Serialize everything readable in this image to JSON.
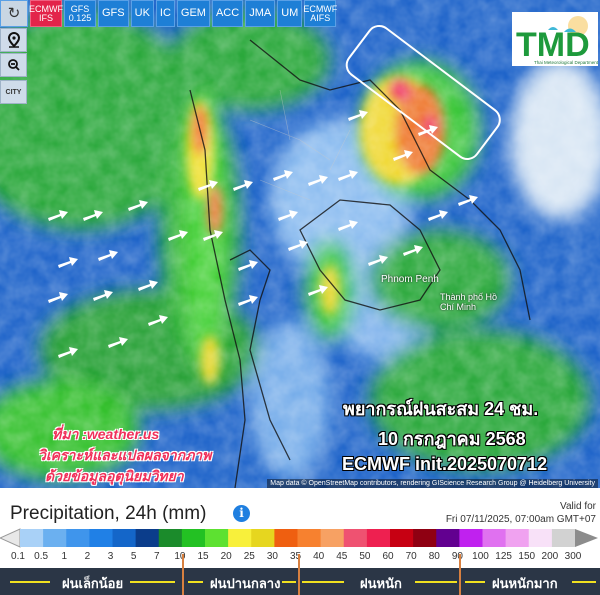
{
  "toolbar": {
    "refresh_icon": "refresh-icon",
    "models": [
      {
        "label": "ECMWF IFS",
        "active": true
      },
      {
        "label": "GFS 0.125",
        "active": false
      },
      {
        "label": "GFS",
        "active": false
      },
      {
        "label": "UK",
        "active": false
      },
      {
        "label": "IC",
        "active": false
      },
      {
        "label": "GEM",
        "active": false
      },
      {
        "label": "ACC",
        "active": false
      },
      {
        "label": "JMA",
        "active": false
      },
      {
        "label": "UM",
        "active": false
      },
      {
        "label": "ECMWF AIFS",
        "active": false
      }
    ]
  },
  "side_tools": {
    "location_icon": "map-pin-icon",
    "zoom_icon": "zoom-out-icon",
    "city_label": "CITY"
  },
  "logo": {
    "text": "TMD",
    "subtitle": "Thai Meteorological Department"
  },
  "map": {
    "cities": [
      "Phnom Penh",
      "Thành phố Hồ Chí Minh"
    ],
    "attribution": "Map data © OpenStreetMap contributors, rendering GIScience Research Group @ Heidelberg University"
  },
  "overlay": {
    "title": "พยากรณ์ฝนสะสม 24 ชม.",
    "date": "10 กรกฎาคม 2568",
    "model_init": "ECMWF init.2025070712",
    "source": "ที่มา :weather.us",
    "analysis": "วิเคราะห์และแปลผลจากภาพ",
    "credit": "ด้วยข้อมูลอุตุนิยมวิทยา"
  },
  "legend": {
    "title": "Precipitation, 24h (mm)",
    "info_icon": "info-icon",
    "valid_label": "Valid for",
    "valid_time": "Fri 07/11/2025, 07:00am GMT+07",
    "ticks": [
      "0.1",
      "0.5",
      "1",
      "2",
      "3",
      "5",
      "7",
      "10",
      "15",
      "20",
      "25",
      "30",
      "35",
      "40",
      "45",
      "50",
      "60",
      "70",
      "80",
      "90",
      "100",
      "125",
      "150",
      "200",
      "300"
    ],
    "colors": [
      "#a9d1f7",
      "#6bb0f0",
      "#3f95ec",
      "#2080e6",
      "#1466c9",
      "#0b3d8b",
      "#1b8b2b",
      "#23c123",
      "#5de131",
      "#f8f03b",
      "#e6d61f",
      "#ef5f10",
      "#f7812f",
      "#f7a163",
      "#ef5271",
      "#ee2050",
      "#c70012",
      "#8f0012",
      "#620090",
      "#c021ef",
      "#e071f0",
      "#f0a2f0",
      "#f8e1f8",
      "#d2d2d2"
    ],
    "under_color": "#e8e8e8",
    "over_color": "#8c8c8c",
    "categories": [
      "ฝนเล็กน้อย",
      "ฝนปานกลาง",
      "ฝนหนัก",
      "ฝนหนักมาก"
    ]
  }
}
